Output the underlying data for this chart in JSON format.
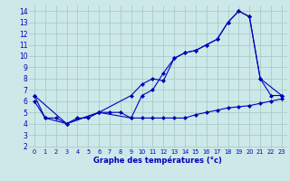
{
  "xlabel": "Graphe des températures (°c)",
  "bg_color": "#cce8e8",
  "line_color": "#0000bb",
  "grid_color": "#aacccc",
  "line1_x": [
    0,
    1,
    2,
    3,
    4,
    5,
    6,
    7,
    8,
    9,
    10,
    11,
    12,
    13,
    14,
    15,
    16,
    17,
    18,
    19,
    20,
    21,
    22,
    23
  ],
  "line1_y": [
    6.0,
    4.5,
    4.5,
    4.0,
    4.5,
    4.5,
    5.0,
    5.0,
    5.0,
    4.5,
    4.5,
    4.5,
    4.5,
    4.5,
    4.5,
    4.8,
    5.0,
    5.2,
    5.4,
    5.5,
    5.6,
    5.8,
    6.0,
    6.2
  ],
  "line2_x": [
    0,
    1,
    3,
    6,
    9,
    10,
    11,
    12,
    13,
    14,
    15,
    16,
    17,
    18,
    19,
    20,
    21,
    23
  ],
  "line2_y": [
    6.5,
    4.5,
    4.0,
    5.0,
    6.5,
    7.5,
    8.0,
    7.8,
    9.8,
    10.3,
    10.5,
    11.0,
    11.5,
    13.0,
    14.0,
    13.5,
    8.0,
    6.5
  ],
  "line3_x": [
    0,
    3,
    6,
    9,
    10,
    11,
    12,
    13,
    14,
    15,
    16,
    17,
    18,
    19,
    20,
    21,
    22,
    23
  ],
  "line3_y": [
    6.5,
    4.0,
    5.0,
    4.5,
    6.5,
    7.0,
    8.5,
    9.8,
    10.3,
    10.5,
    11.0,
    11.5,
    13.0,
    14.0,
    13.5,
    8.0,
    6.5,
    6.5
  ],
  "xlim": [
    -0.5,
    23.5
  ],
  "ylim": [
    1.8,
    14.5
  ],
  "yticks": [
    2,
    3,
    4,
    5,
    6,
    7,
    8,
    9,
    10,
    11,
    12,
    13,
    14
  ],
  "xticks": [
    0,
    1,
    2,
    3,
    4,
    5,
    6,
    7,
    8,
    9,
    10,
    11,
    12,
    13,
    14,
    15,
    16,
    17,
    18,
    19,
    20,
    21,
    22,
    23
  ]
}
